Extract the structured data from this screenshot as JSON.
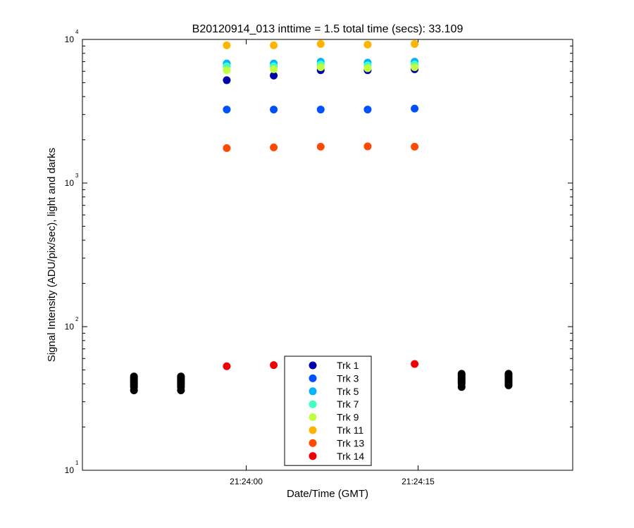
{
  "chart_data": {
    "type": "scatter",
    "title": "B20120914_013 inttime = 1.5 total time (secs): 33.109",
    "xlabel": "Date/Time (GMT)",
    "ylabel": "Signal Intensity (ADU/pix/sec), light and darks",
    "yscale": "log",
    "ylim": [
      10,
      10000
    ],
    "xlim": [
      "21:23:45.7",
      "21:24:28.5"
    ],
    "x_ticks": [
      "21:24:00",
      "21:24:15"
    ],
    "y_ticks": [
      {
        "base": "10",
        "exp": "1"
      },
      {
        "base": "10",
        "exp": "2"
      },
      {
        "base": "10",
        "exp": "3"
      },
      {
        "base": "10",
        "exp": "4"
      }
    ],
    "grid": false,
    "legend_position": "bottom-center",
    "light_times": [
      "21:23:58.3",
      "21:24:02.4",
      "21:24:06.5",
      "21:24:10.6",
      "21:24:14.7"
    ],
    "series": [
      {
        "name": "Trk 1",
        "color": "#0000aa",
        "values": [
          5200,
          5600,
          6100,
          6100,
          6200
        ]
      },
      {
        "name": "Trk 3",
        "color": "#0050ff",
        "values": [
          3250,
          3250,
          3250,
          3250,
          3300
        ]
      },
      {
        "name": "Trk 5",
        "color": "#00b4ff",
        "values": [
          6800,
          6800,
          7000,
          6900,
          7000
        ]
      },
      {
        "name": "Trk 7",
        "color": "#40ffc0",
        "values": [
          6500,
          6500,
          6700,
          6600,
          6700
        ]
      },
      {
        "name": "Trk 9",
        "color": "#bfff40",
        "values": [
          6100,
          6200,
          6400,
          6300,
          6400
        ]
      },
      {
        "name": "Trk 11",
        "color": "#ffb400",
        "values": [
          9100,
          9100,
          9300,
          9200,
          9300
        ]
      },
      {
        "name": "Trk 13",
        "color": "#ff4800",
        "values": [
          1750,
          1770,
          1790,
          1800,
          1790
        ]
      },
      {
        "name": "Trk 14",
        "color": "#f00000",
        "values": [
          53,
          54,
          null,
          null,
          55
        ]
      }
    ],
    "darks": {
      "color": "#000000",
      "groups": [
        {
          "time": "21:23:50.2",
          "values": [
            36,
            38,
            39,
            40,
            41,
            42,
            43,
            44,
            45
          ]
        },
        {
          "time": "21:23:54.3",
          "values": [
            36,
            38,
            39,
            40,
            41,
            42,
            43,
            44,
            45
          ]
        },
        {
          "time": "21:24:18.8",
          "values": [
            38,
            40,
            41,
            42,
            43,
            44,
            45,
            46,
            47
          ]
        },
        {
          "time": "21:24:22.9",
          "values": [
            39,
            40,
            41,
            42,
            43,
            44,
            45,
            46,
            47
          ]
        }
      ]
    }
  }
}
